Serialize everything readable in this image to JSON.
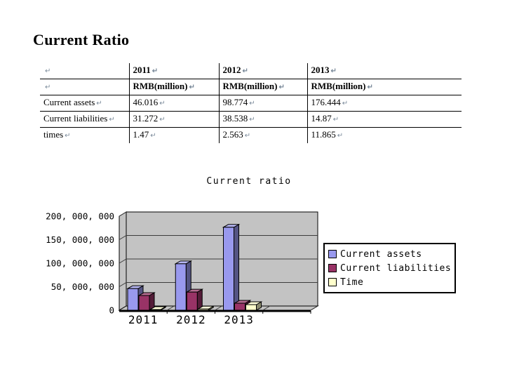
{
  "page": {
    "title": "Current Ratio"
  },
  "table": {
    "pilcrow": "↵",
    "columns": [
      "",
      "2011",
      "2012",
      "2013"
    ],
    "unit_row": [
      "",
      "RMB(million)",
      "RMB(million)",
      "RMB(million)"
    ],
    "rows": [
      {
        "label": "Current assets",
        "values": [
          "46.016",
          "98.774",
          "176.444"
        ]
      },
      {
        "label": "Current liabilities",
        "values": [
          "31.272",
          "38.538",
          "14.87"
        ]
      },
      {
        "label": "times",
        "values": [
          "1.47",
          "2.563",
          "11.865"
        ]
      }
    ]
  },
  "chart_data": {
    "type": "bar",
    "title": "Current ratio",
    "categories": [
      "2011",
      "2012",
      "2013"
    ],
    "series": [
      {
        "name": "Current assets",
        "color": "#9999EE",
        "values": [
          46016000,
          98774000,
          176444000
        ]
      },
      {
        "name": "Current liabilities",
        "color": "#993366",
        "values": [
          31272000,
          38538000,
          14870000
        ]
      },
      {
        "name": "Time",
        "color": "#FFFFCC",
        "values": [
          1470000,
          2563000,
          11865000
        ]
      }
    ],
    "ylim": [
      0,
      200000000
    ],
    "ytick_labels": [
      "0",
      "50, 000, 000",
      "100, 000, 000",
      "150, 000, 000",
      "200, 000, 000"
    ],
    "xlabel": "",
    "ylabel": "",
    "legend_position": "right",
    "grid": true,
    "style3d": true,
    "wall_color": "#C3C3C3"
  }
}
